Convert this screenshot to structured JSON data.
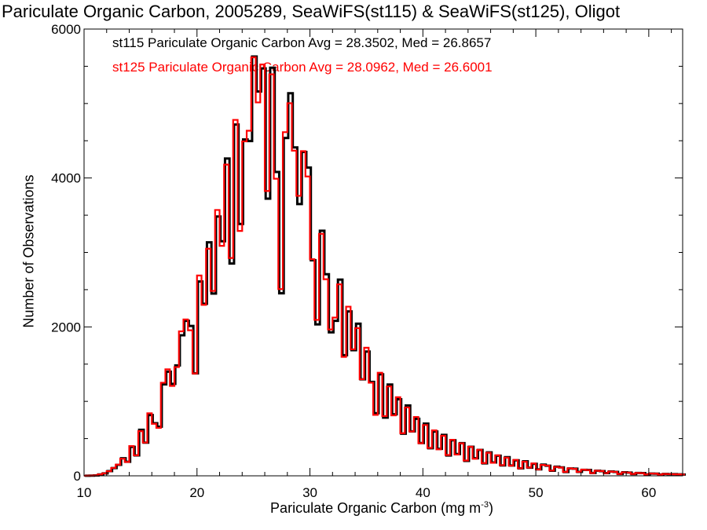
{
  "chart_data": {
    "type": "histogram",
    "title": "Pariculate Organic Carbon, 2005289, SeaWiFS(st115) & SeaWiFS(st125), Oligot",
    "xlabel": "Pariculate Organic Carbon (mg m",
    "xlabel_sup": "-3",
    "xlabel_suffix": ")",
    "ylabel": "Number of Observations",
    "xlim": [
      10,
      63
    ],
    "ylim": [
      0,
      6000
    ],
    "xticks": [
      10,
      20,
      30,
      40,
      50,
      60
    ],
    "yticks": [
      0,
      2000,
      4000,
      6000
    ],
    "x_minor_step": 2,
    "y_minor_step": 500,
    "bin_width": 0.4,
    "series": [
      {
        "name": "st115",
        "label": "st115 Pariculate Organic Carbon Avg = 28.3502, Med = 26.8657",
        "color": "#000000",
        "avg": 28.3502,
        "median": 26.8657
      },
      {
        "name": "st125",
        "label": "st125 Pariculate Organic Carbon Avg = 28.0962, Med = 26.6001",
        "color": "#ff0000",
        "avg": 28.0962,
        "median": 26.6001
      }
    ],
    "envelope": [
      [
        10.0,
        0
      ],
      [
        11.0,
        5
      ],
      [
        12.0,
        40
      ],
      [
        13.0,
        150
      ],
      [
        14.0,
        350
      ],
      [
        15.0,
        600
      ],
      [
        16.0,
        900
      ],
      [
        17.0,
        1250
      ],
      [
        18.0,
        1700
      ],
      [
        19.0,
        2100
      ],
      [
        20.0,
        2600
      ],
      [
        21.0,
        3050
      ],
      [
        22.0,
        3700
      ],
      [
        23.0,
        4500
      ],
      [
        24.0,
        5200
      ],
      [
        25.0,
        5620
      ],
      [
        26.0,
        5500
      ],
      [
        27.0,
        5320
      ],
      [
        28.0,
        5080
      ],
      [
        29.0,
        4700
      ],
      [
        30.0,
        3850
      ],
      [
        31.0,
        3250
      ],
      [
        32.0,
        2800
      ],
      [
        33.0,
        2420
      ],
      [
        34.0,
        2050
      ],
      [
        35.0,
        1720
      ],
      [
        36.0,
        1430
      ],
      [
        37.0,
        1200
      ],
      [
        38.0,
        1020
      ],
      [
        39.0,
        850
      ],
      [
        40.0,
        700
      ],
      [
        42.0,
        520
      ],
      [
        44.0,
        400
      ],
      [
        46.0,
        300
      ],
      [
        48.0,
        220
      ],
      [
        50.0,
        160
      ],
      [
        52.0,
        115
      ],
      [
        54.0,
        85
      ],
      [
        56.0,
        62
      ],
      [
        58.0,
        45
      ],
      [
        60.0,
        32
      ],
      [
        62.0,
        22
      ],
      [
        63.0,
        18
      ]
    ],
    "dips": [
      [
        13.8,
        0.6
      ],
      [
        14.6,
        0.55
      ],
      [
        15.4,
        0.62
      ],
      [
        16.2,
        0.72
      ],
      [
        16.6,
        0.58
      ],
      [
        17.8,
        0.75
      ],
      [
        18.2,
        0.82
      ],
      [
        19.4,
        0.85
      ],
      [
        19.8,
        0.55
      ],
      [
        20.6,
        0.8
      ],
      [
        21.4,
        0.75
      ],
      [
        22.2,
        0.8
      ],
      [
        23.0,
        0.65
      ],
      [
        23.8,
        0.65
      ],
      [
        24.2,
        0.85
      ],
      [
        24.6,
        0.85
      ],
      [
        25.4,
        0.9
      ],
      [
        26.2,
        0.7
      ],
      [
        27.0,
        0.75
      ],
      [
        27.4,
        0.48
      ],
      [
        27.8,
        0.9
      ],
      [
        28.6,
        0.9
      ],
      [
        29.0,
        0.8
      ],
      [
        30.2,
        0.78
      ],
      [
        30.6,
        0.6
      ],
      [
        31.4,
        0.86
      ],
      [
        31.8,
        0.68
      ],
      [
        32.2,
        0.78
      ],
      [
        33.0,
        0.66
      ],
      [
        33.8,
        0.8
      ],
      [
        34.6,
        0.7
      ],
      [
        35.4,
        0.78
      ],
      [
        35.8,
        0.55
      ],
      [
        36.6,
        0.62
      ],
      [
        37.4,
        0.72
      ],
      [
        38.2,
        0.58
      ],
      [
        39.0,
        0.7
      ],
      [
        39.8,
        0.6
      ],
      [
        40.6,
        0.58
      ],
      [
        41.4,
        0.62
      ],
      [
        42.2,
        0.55
      ],
      [
        43.0,
        0.62
      ],
      [
        43.8,
        0.5
      ],
      [
        44.6,
        0.62
      ],
      [
        45.4,
        0.52
      ],
      [
        46.2,
        0.6
      ],
      [
        47.0,
        0.55
      ],
      [
        47.8,
        0.6
      ],
      [
        48.6,
        0.5
      ],
      [
        49.4,
        0.62
      ],
      [
        50.2,
        0.55
      ],
      [
        51.4,
        0.55
      ],
      [
        52.6,
        0.5
      ],
      [
        53.8,
        0.6
      ],
      [
        55.0,
        0.5
      ],
      [
        56.2,
        0.6
      ],
      [
        57.4,
        0.5
      ],
      [
        58.6,
        0.6
      ],
      [
        59.8,
        0.55
      ],
      [
        61.0,
        0.6
      ]
    ]
  }
}
